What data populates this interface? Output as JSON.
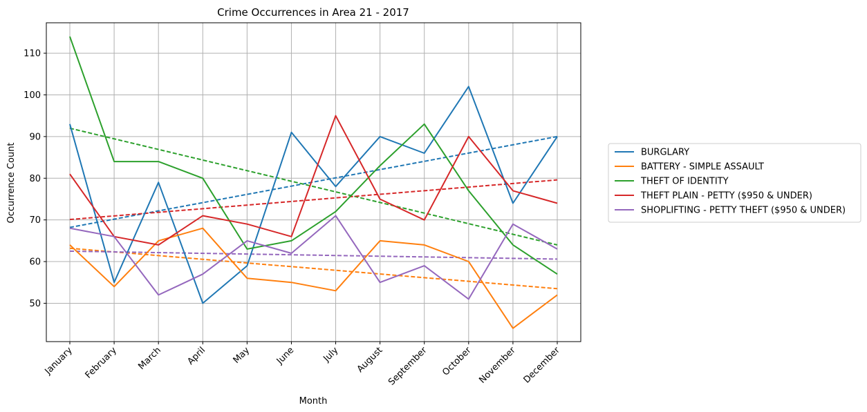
{
  "chart_data": {
    "type": "line",
    "title": "Crime Occurrences in Area 21 - 2017",
    "xlabel": "Month",
    "ylabel": "Occurrence Count",
    "categories": [
      "January",
      "February",
      "March",
      "April",
      "May",
      "June",
      "July",
      "August",
      "September",
      "October",
      "November",
      "December"
    ],
    "ylim": [
      40.8,
      117.3
    ],
    "yticks": [
      50,
      60,
      70,
      80,
      90,
      100,
      110
    ],
    "grid": true,
    "legend_position": "right",
    "series": [
      {
        "name": "BURGLARY",
        "color": "#1f77b4",
        "values": [
          93,
          55,
          79,
          50,
          59,
          91,
          78,
          90,
          86,
          102,
          74,
          90
        ],
        "trend": [
          68.2,
          90.0
        ]
      },
      {
        "name": "BATTERY - SIMPLE ASSAULT",
        "color": "#ff7f0e",
        "values": [
          64,
          54,
          65,
          68,
          56,
          55,
          53,
          65,
          64,
          60,
          44,
          52
        ],
        "trend": [
          63.2,
          53.5
        ]
      },
      {
        "name": "THEFT OF IDENTITY",
        "color": "#2ca02c",
        "values": [
          114,
          84,
          84,
          80,
          63,
          65,
          72,
          83,
          93,
          77,
          64,
          57
        ],
        "trend": [
          92.0,
          64.0
        ]
      },
      {
        "name": "THEFT PLAIN - PETTY ($950 & UNDER)",
        "color": "#d62728",
        "values": [
          81,
          66,
          64,
          71,
          69,
          66,
          95,
          75,
          70,
          90,
          77,
          74
        ],
        "trend": [
          70.1,
          79.6
        ]
      },
      {
        "name": "SHOPLIFTING - PETTY THEFT ($950 & UNDER)",
        "color": "#9467bd",
        "values": [
          68,
          66,
          52,
          57,
          65,
          62,
          71,
          55,
          59,
          51,
          69,
          63
        ],
        "trend": [
          62.5,
          60.6
        ]
      }
    ]
  }
}
